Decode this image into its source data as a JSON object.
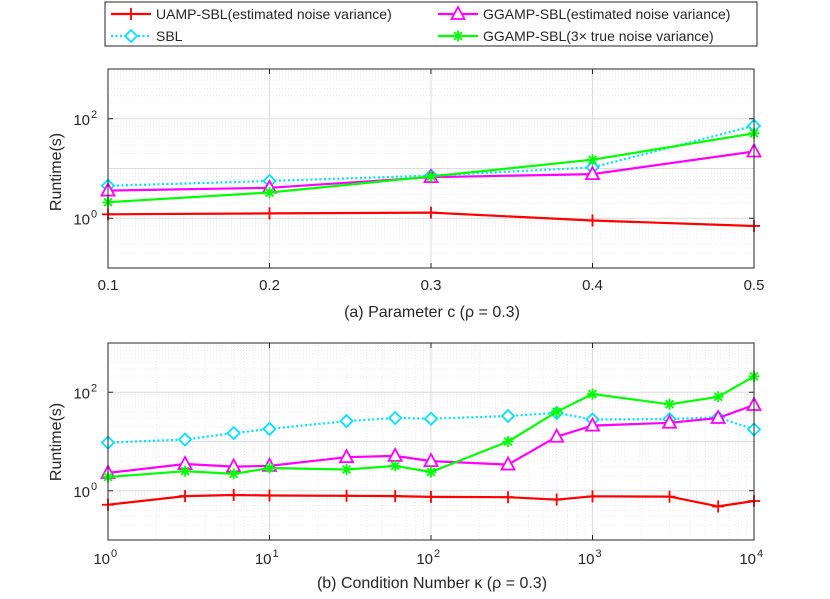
{
  "legend": [
    {
      "label": "UAMP-SBL(estimated noise variance)",
      "color": "#ff0000",
      "marker": "plus",
      "dash": "solid"
    },
    {
      "label": "GGAMP-SBL(estimated noise variance)",
      "color": "#ff00ff",
      "marker": "triangle",
      "dash": "solid"
    },
    {
      "label": "SBL",
      "color": "#00e0ff",
      "marker": "diamond",
      "dash": "dotted"
    },
    {
      "label": "GGAMP-SBL(3× true noise variance)",
      "color": "#00ff00",
      "marker": "asterisk",
      "dash": "solid"
    }
  ],
  "chart_data": [
    {
      "type": "line",
      "id": "top",
      "title": "",
      "xlabel": "(a) Parameter c   (ρ = 0.3)",
      "ylabel": "Runtime(s)",
      "xscale": "linear",
      "yscale": "log",
      "xlim": [
        0.1,
        0.5
      ],
      "ylim": [
        0.1,
        1000
      ],
      "xticks": [
        0.1,
        0.2,
        0.3,
        0.4,
        0.5
      ],
      "xtick_labels": [
        "0.1",
        "0.2",
        "0.3",
        "0.4",
        "0.5"
      ],
      "yticks": [
        {
          "base": "10",
          "exp": "0",
          "value": 1
        },
        {
          "base": "10",
          "exp": "2",
          "value": 100
        }
      ],
      "grid": true,
      "x": [
        0.1,
        0.2,
        0.3,
        0.4,
        0.5
      ],
      "series": [
        {
          "name": "UAMP-SBL(estimated noise variance)",
          "values": [
            1.2,
            1.25,
            1.3,
            0.9,
            0.7
          ]
        },
        {
          "name": "SBL",
          "values": [
            4.5,
            5.6,
            7.2,
            10.5,
            72
          ]
        },
        {
          "name": "GGAMP-SBL(estimated noise variance)",
          "values": [
            3.6,
            4.1,
            6.7,
            7.7,
            22
          ]
        },
        {
          "name": "GGAMP-SBL(3× true noise variance)",
          "values": [
            2.1,
            3.3,
            6.9,
            15.0,
            51
          ]
        }
      ]
    },
    {
      "type": "line",
      "id": "bottom",
      "title": "",
      "xlabel": "(b) Condition Number κ  (ρ = 0.3)",
      "ylabel": "Runtime(s)",
      "xscale": "log",
      "yscale": "log",
      "xlim": [
        1,
        10000
      ],
      "ylim": [
        0.1,
        1000
      ],
      "xticks": [
        {
          "base": "10",
          "exp": "0",
          "value": 1
        },
        {
          "base": "10",
          "exp": "1",
          "value": 10
        },
        {
          "base": "10",
          "exp": "2",
          "value": 100
        },
        {
          "base": "10",
          "exp": "3",
          "value": 1000
        },
        {
          "base": "10",
          "exp": "4",
          "value": 10000
        }
      ],
      "yticks": [
        {
          "base": "10",
          "exp": "0",
          "value": 1
        },
        {
          "base": "10",
          "exp": "2",
          "value": 100
        }
      ],
      "grid": true,
      "x": [
        1,
        3,
        6,
        10,
        30,
        60,
        100,
        300,
        600,
        1000,
        3000,
        6000,
        10000
      ],
      "series": [
        {
          "name": "UAMP-SBL(estimated noise variance)",
          "values": [
            0.52,
            0.78,
            0.82,
            0.8,
            0.79,
            0.78,
            0.75,
            0.74,
            0.66,
            0.77,
            0.76,
            0.48,
            0.62
          ]
        },
        {
          "name": "SBL",
          "values": [
            9.5,
            11.0,
            14.8,
            18.0,
            26,
            30,
            29,
            33,
            38,
            28,
            28.5,
            31,
            17.5
          ]
        },
        {
          "name": "GGAMP-SBL(estimated noise variance)",
          "values": [
            2.3,
            3.5,
            3.1,
            3.2,
            4.8,
            5.1,
            4.0,
            3.4,
            12.5,
            21,
            24,
            30,
            55
          ]
        },
        {
          "name": "GGAMP-SBL(3× true noise variance)",
          "values": [
            1.9,
            2.5,
            2.2,
            2.9,
            2.7,
            3.2,
            2.4,
            10.0,
            40,
            92,
            57,
            81,
            210
          ]
        }
      ]
    }
  ]
}
